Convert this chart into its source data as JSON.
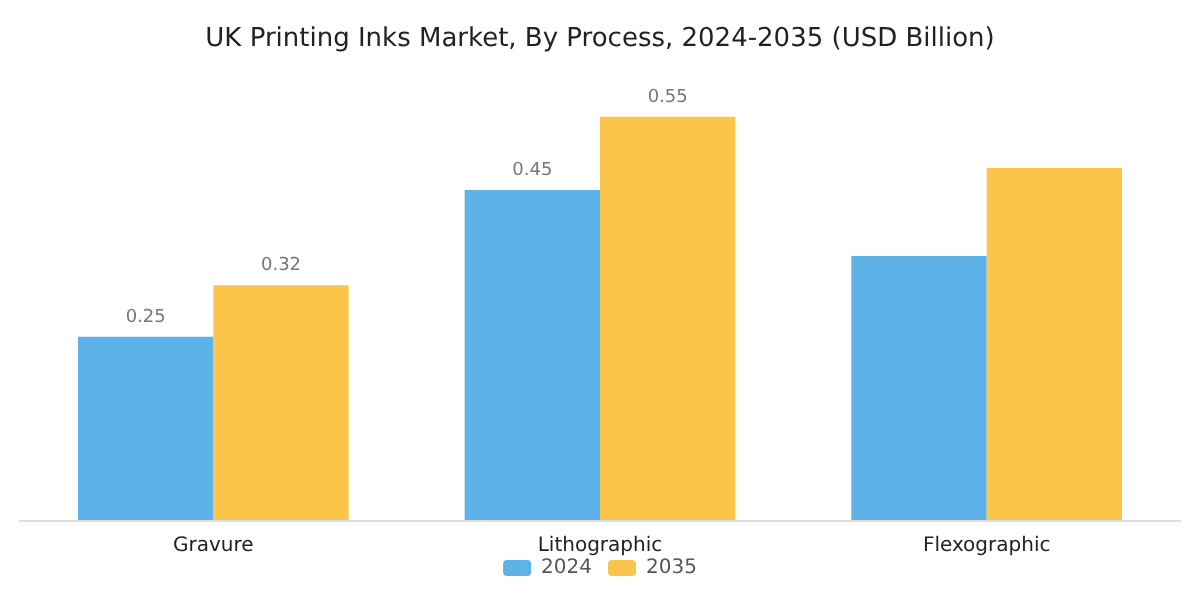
{
  "chart_data": {
    "type": "bar",
    "title": "UK Printing Inks Market, By Process, 2024-2035 (USD Billion)",
    "categories": [
      "Gravure",
      "Lithographic",
      "Flexographic"
    ],
    "series": [
      {
        "name": "2024",
        "color": "#5db3e8",
        "values": [
          0.25,
          0.45,
          0.36
        ],
        "value_labels": [
          "0.25",
          "0.45",
          null
        ]
      },
      {
        "name": "2035",
        "color": "#fbc54b",
        "values": [
          0.32,
          0.55,
          0.48
        ],
        "value_labels": [
          "0.32",
          "0.55",
          null
        ]
      }
    ],
    "tick_labels": "x",
    "legend": "bottom"
  }
}
